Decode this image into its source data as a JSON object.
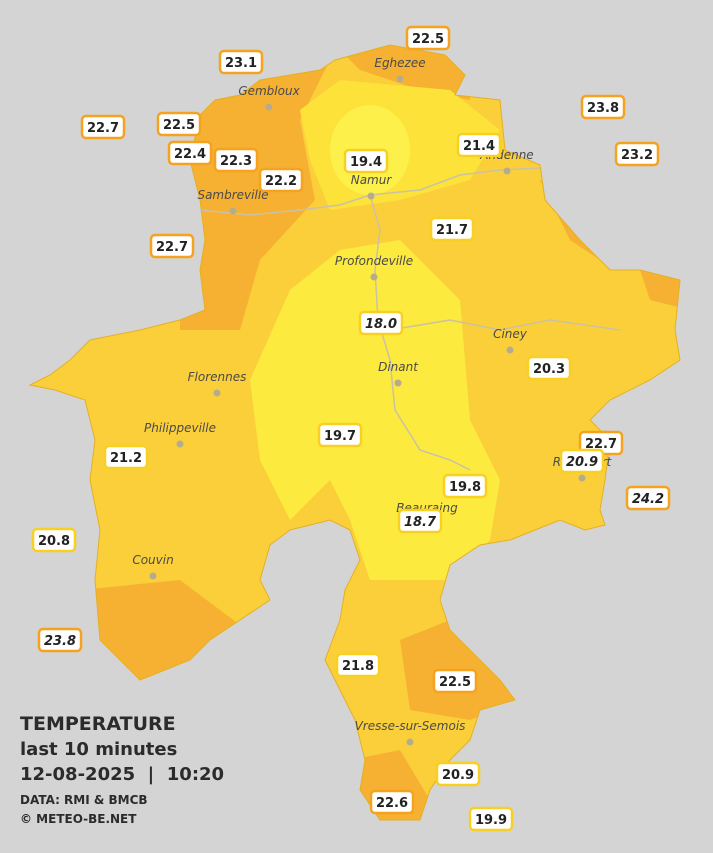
{
  "legend": {
    "title": "TEMPERATURE",
    "period": "last 10 minutes",
    "datetime": "12-08-2025  |  10:20",
    "source": "DATA: RMI & BMCB",
    "copyright": "© METEO-BE.NET"
  },
  "towns": [
    "Eghezee",
    "Gembloux",
    "Andenne",
    "Namur",
    "Sambreville",
    "Profondeville",
    "Ciney",
    "Dinant",
    "Florennes",
    "Philippeville",
    "Beauraing",
    "Rochefort",
    "Couvin",
    "Vresse-sur-Semois"
  ],
  "stations": [
    {
      "value": "22.5",
      "color": "orange"
    },
    {
      "value": "23.1",
      "color": "orange"
    },
    {
      "value": "23.8",
      "color": "orange"
    },
    {
      "value": "22.7",
      "color": "orange"
    },
    {
      "value": "22.5",
      "color": "orange"
    },
    {
      "value": "21.4",
      "color": "yellow"
    },
    {
      "value": "23.2",
      "color": "orange"
    },
    {
      "value": "22.4",
      "color": "orange"
    },
    {
      "value": "22.3",
      "color": "orange"
    },
    {
      "value": "19.4",
      "color": "yellow"
    },
    {
      "value": "22.2",
      "color": "orange"
    },
    {
      "value": "21.7",
      "color": "yellow"
    },
    {
      "value": "22.7",
      "color": "orange"
    },
    {
      "value": "18.0",
      "color": "yellow",
      "italic": true
    },
    {
      "value": "20.3",
      "color": "yellow"
    },
    {
      "value": "19.7",
      "color": "yellow"
    },
    {
      "value": "22.7",
      "color": "orange"
    },
    {
      "value": "21.2",
      "color": "yellow"
    },
    {
      "value": "20.9",
      "color": "yellow",
      "italic": true
    },
    {
      "value": "19.8",
      "color": "yellow"
    },
    {
      "value": "24.2",
      "color": "orange",
      "italic": true
    },
    {
      "value": "18.7",
      "color": "yellow",
      "italic": true
    },
    {
      "value": "20.8",
      "color": "yellow"
    },
    {
      "value": "23.8",
      "color": "orange",
      "italic": true
    },
    {
      "value": "21.8",
      "color": "yellow"
    },
    {
      "value": "22.5",
      "color": "orange"
    },
    {
      "value": "20.9",
      "color": "yellow"
    },
    {
      "value": "22.6",
      "color": "orange"
    },
    {
      "value": "19.9",
      "color": "yellow"
    }
  ]
}
